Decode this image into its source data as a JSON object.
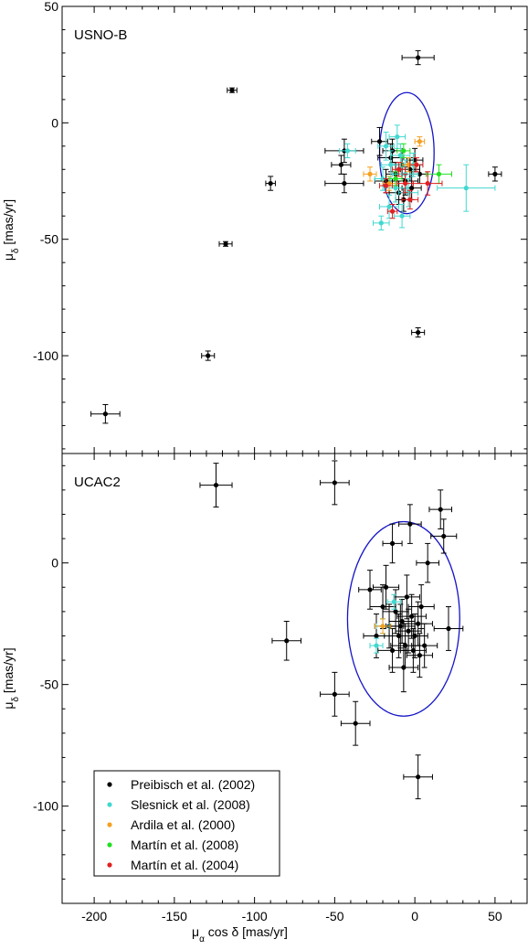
{
  "chart_data": [
    {
      "type": "scatter",
      "panel_label": "USNO-B",
      "xlabel": "",
      "ylabel": "μδ [mas/yr]",
      "xlim": [
        -220,
        70
      ],
      "ylim": [
        -142,
        50
      ],
      "xticks": [
        -200,
        -150,
        -100,
        -50,
        0,
        50
      ],
      "yticks": [
        50,
        0,
        -50,
        -100
      ],
      "ytick_labels": [
        "50",
        "0",
        "-50",
        "-100"
      ],
      "ellipse": {
        "cx": -5,
        "cy": -13,
        "rx": 17,
        "ry": 26,
        "color": "#1414c8"
      },
      "series": [
        {
          "name": "Preibisch et al. (2002)",
          "color": "#000000",
          "points": [
            {
              "x": -193,
              "y": -125,
              "ex": 9,
              "ey": 4
            },
            {
              "x": -129,
              "y": -100,
              "ex": 4,
              "ey": 2
            },
            {
              "x": -118,
              "y": -52,
              "ex": 4,
              "ey": 1
            },
            {
              "x": -114,
              "y": 14,
              "ex": 3,
              "ey": 1
            },
            {
              "x": -90,
              "y": -26,
              "ex": 3,
              "ey": 3
            },
            {
              "x": 2,
              "y": 28,
              "ex": 10,
              "ey": 3
            },
            {
              "x": 2,
              "y": -90,
              "ex": 4,
              "ey": 2
            },
            {
              "x": 50,
              "y": -22,
              "ex": 4,
              "ey": 3
            },
            {
              "x": -44,
              "y": -12,
              "ex": 12,
              "ey": 5
            },
            {
              "x": -46,
              "y": -18,
              "ex": 6,
              "ey": 4
            },
            {
              "x": -44,
              "y": -26,
              "ex": 12,
              "ey": 4
            },
            {
              "x": -22,
              "y": -8,
              "ex": 5,
              "ey": 6
            },
            {
              "x": -15,
              "y": -15,
              "ex": 8,
              "ey": 6
            },
            {
              "x": -12,
              "y": -22,
              "ex": 6,
              "ey": 5
            },
            {
              "x": -8,
              "y": -18,
              "ex": 7,
              "ey": 6
            },
            {
              "x": -6,
              "y": -25,
              "ex": 8,
              "ey": 6
            },
            {
              "x": -3,
              "y": -20,
              "ex": 6,
              "ey": 5
            },
            {
              "x": 0,
              "y": -16,
              "ex": 5,
              "ey": 5
            },
            {
              "x": -10,
              "y": -30,
              "ex": 6,
              "ey": 5
            },
            {
              "x": -18,
              "y": -25,
              "ex": 7,
              "ey": 5
            },
            {
              "x": -2,
              "y": -28,
              "ex": 6,
              "ey": 5
            },
            {
              "x": 3,
              "y": -22,
              "ex": 5,
              "ey": 4
            },
            {
              "x": -14,
              "y": -12,
              "ex": 6,
              "ey": 5
            },
            {
              "x": -7,
              "y": -33,
              "ex": 5,
              "ey": 5
            }
          ]
        },
        {
          "name": "Slesnick et al. (2008)",
          "color": "#40d8d0",
          "points": [
            {
              "x": -42,
              "y": -12,
              "ex": 5,
              "ey": 3
            },
            {
              "x": -21,
              "y": -43,
              "ex": 5,
              "ey": 3
            },
            {
              "x": -18,
              "y": -10,
              "ex": 5,
              "ey": 6
            },
            {
              "x": -15,
              "y": -18,
              "ex": 6,
              "ey": 6
            },
            {
              "x": -12,
              "y": -28,
              "ex": 7,
              "ey": 6
            },
            {
              "x": -9,
              "y": -14,
              "ex": 6,
              "ey": 5
            },
            {
              "x": -6,
              "y": -22,
              "ex": 8,
              "ey": 6
            },
            {
              "x": -4,
              "y": -30,
              "ex": 6,
              "ey": 6
            },
            {
              "x": -1,
              "y": -18,
              "ex": 6,
              "ey": 5
            },
            {
              "x": -16,
              "y": -36,
              "ex": 6,
              "ey": 5
            },
            {
              "x": -20,
              "y": -24,
              "ex": 5,
              "ey": 5
            },
            {
              "x": 32,
              "y": -28,
              "ex": 18,
              "ey": 10
            },
            {
              "x": -11,
              "y": -6,
              "ex": 5,
              "ey": 5
            },
            {
              "x": -8,
              "y": -40,
              "ex": 5,
              "ey": 5
            }
          ]
        },
        {
          "name": "Ardila et al. (2000)",
          "color": "#f5a020",
          "points": [
            {
              "x": 3,
              "y": -8,
              "ex": 3,
              "ey": 2
            },
            {
              "x": -28,
              "y": -22,
              "ex": 4,
              "ey": 3
            },
            {
              "x": -16,
              "y": -26,
              "ex": 4,
              "ey": 3
            },
            {
              "x": -4,
              "y": -18,
              "ex": 4,
              "ey": 3
            }
          ]
        },
        {
          "name": "Martín et al. (2008)",
          "color": "#20e020",
          "points": [
            {
              "x": 15,
              "y": -22,
              "ex": 8,
              "ey": 4
            },
            {
              "x": -7,
              "y": -12,
              "ex": 4,
              "ey": 3
            },
            {
              "x": -12,
              "y": -24,
              "ex": 4,
              "ey": 3
            }
          ]
        },
        {
          "name": "Martín et al. (2004)",
          "color": "#e02020",
          "points": [
            {
              "x": -14,
              "y": -38,
              "ex": 3,
              "ey": 3
            },
            {
              "x": -6,
              "y": -26,
              "ex": 5,
              "ey": 4
            },
            {
              "x": -3,
              "y": -33,
              "ex": 5,
              "ey": 4
            },
            {
              "x": 8,
              "y": -26,
              "ex": 9,
              "ey": 5
            },
            {
              "x": -10,
              "y": -20,
              "ex": 4,
              "ey": 3
            },
            {
              "x": -18,
              "y": -27,
              "ex": 4,
              "ey": 3
            },
            {
              "x": 1,
              "y": -18,
              "ex": 4,
              "ey": 3
            }
          ]
        }
      ]
    },
    {
      "type": "scatter",
      "panel_label": "UCAC2",
      "xlabel": "μα cos δ [mas/yr]",
      "ylabel": "μδ [mas/yr]",
      "xlim": [
        -220,
        70
      ],
      "ylim": [
        -140,
        45
      ],
      "xticks": [
        -200,
        -150,
        -100,
        -50,
        0,
        50
      ],
      "xtick_labels": [
        "-200",
        "-150",
        "-100",
        "-50",
        "0",
        "50"
      ],
      "yticks": [
        0,
        -50,
        -100
      ],
      "ytick_labels": [
        "0",
        "-50",
        "-100"
      ],
      "ellipse": {
        "cx": -7,
        "cy": -23,
        "rx": 35,
        "ry": 40,
        "color": "#1414c8"
      },
      "legend": {
        "position": "bottom-left",
        "entries": [
          {
            "label": "Preibisch et al. (2002)",
            "color": "#000000"
          },
          {
            "label": "Slesnick et al. (2008)",
            "color": "#40d8d0"
          },
          {
            "label": "Ardila et al. (2000)",
            "color": "#f5a020"
          },
          {
            "label": "Martín et al. (2008)",
            "color": "#20e020"
          },
          {
            "label": "Martín et al. (2004)",
            "color": "#e02020"
          }
        ]
      },
      "series": [
        {
          "name": "Preibisch et al. (2002)",
          "color": "#000000",
          "points": [
            {
              "x": -124,
              "y": 32,
              "ex": 10,
              "ey": 9
            },
            {
              "x": -50,
              "y": 33,
              "ex": 9,
              "ey": 9
            },
            {
              "x": 16,
              "y": 22,
              "ex": 7,
              "ey": 8
            },
            {
              "x": 18,
              "y": 11,
              "ex": 8,
              "ey": 7
            },
            {
              "x": -3,
              "y": 16,
              "ex": 7,
              "ey": 8
            },
            {
              "x": -14,
              "y": 8,
              "ex": 6,
              "ey": 8
            },
            {
              "x": 8,
              "y": 0,
              "ex": 7,
              "ey": 8
            },
            {
              "x": -80,
              "y": -32,
              "ex": 9,
              "ey": 8
            },
            {
              "x": -50,
              "y": -54,
              "ex": 9,
              "ey": 9
            },
            {
              "x": -37,
              "y": -66,
              "ex": 9,
              "ey": 9
            },
            {
              "x": 2,
              "y": -88,
              "ex": 9,
              "ey": 9
            },
            {
              "x": 21,
              "y": -27,
              "ex": 9,
              "ey": 9
            },
            {
              "x": -28,
              "y": -11,
              "ex": 7,
              "ey": 8
            },
            {
              "x": -20,
              "y": -18,
              "ex": 8,
              "ey": 9
            },
            {
              "x": -16,
              "y": -26,
              "ex": 9,
              "ey": 9
            },
            {
              "x": -12,
              "y": -20,
              "ex": 8,
              "ey": 9
            },
            {
              "x": -10,
              "y": -30,
              "ex": 9,
              "ey": 9
            },
            {
              "x": -8,
              "y": -24,
              "ex": 8,
              "ey": 9
            },
            {
              "x": -6,
              "y": -34,
              "ex": 9,
              "ey": 9
            },
            {
              "x": -4,
              "y": -28,
              "ex": 8,
              "ey": 9
            },
            {
              "x": -2,
              "y": -22,
              "ex": 9,
              "ey": 9
            },
            {
              "x": 0,
              "y": -30,
              "ex": 8,
              "ey": 9
            },
            {
              "x": 2,
              "y": -25,
              "ex": 9,
              "ey": 9
            },
            {
              "x": 4,
              "y": -18,
              "ex": 8,
              "ey": 9
            },
            {
              "x": -14,
              "y": -36,
              "ex": 9,
              "ey": 9
            },
            {
              "x": -24,
              "y": -30,
              "ex": 8,
              "ey": 9
            },
            {
              "x": 6,
              "y": -34,
              "ex": 8,
              "ey": 9
            },
            {
              "x": -7,
              "y": -43,
              "ex": 9,
              "ey": 10
            },
            {
              "x": -5,
              "y": -14,
              "ex": 8,
              "ey": 9
            },
            {
              "x": -18,
              "y": -10,
              "ex": 8,
              "ey": 9
            },
            {
              "x": 3,
              "y": -38,
              "ex": 8,
              "ey": 9
            },
            {
              "x": -9,
              "y": -26,
              "ex": 9,
              "ey": 9
            },
            {
              "x": -1,
              "y": -36,
              "ex": 8,
              "ey": 9
            }
          ]
        },
        {
          "name": "Slesnick et al. (2008)",
          "color": "#40d8d0",
          "points": [
            {
              "x": -13,
              "y": -16,
              "ex": 4,
              "ey": 3
            },
            {
              "x": -24,
              "y": -34,
              "ex": 4,
              "ey": 3
            },
            {
              "x": -20,
              "y": -26,
              "ex": 4,
              "ey": 3
            }
          ]
        },
        {
          "name": "Ardila et al. (2000)",
          "color": "#f5a020",
          "points": [
            {
              "x": -20,
              "y": -26,
              "ex": 5,
              "ey": 3
            }
          ]
        }
      ]
    }
  ]
}
